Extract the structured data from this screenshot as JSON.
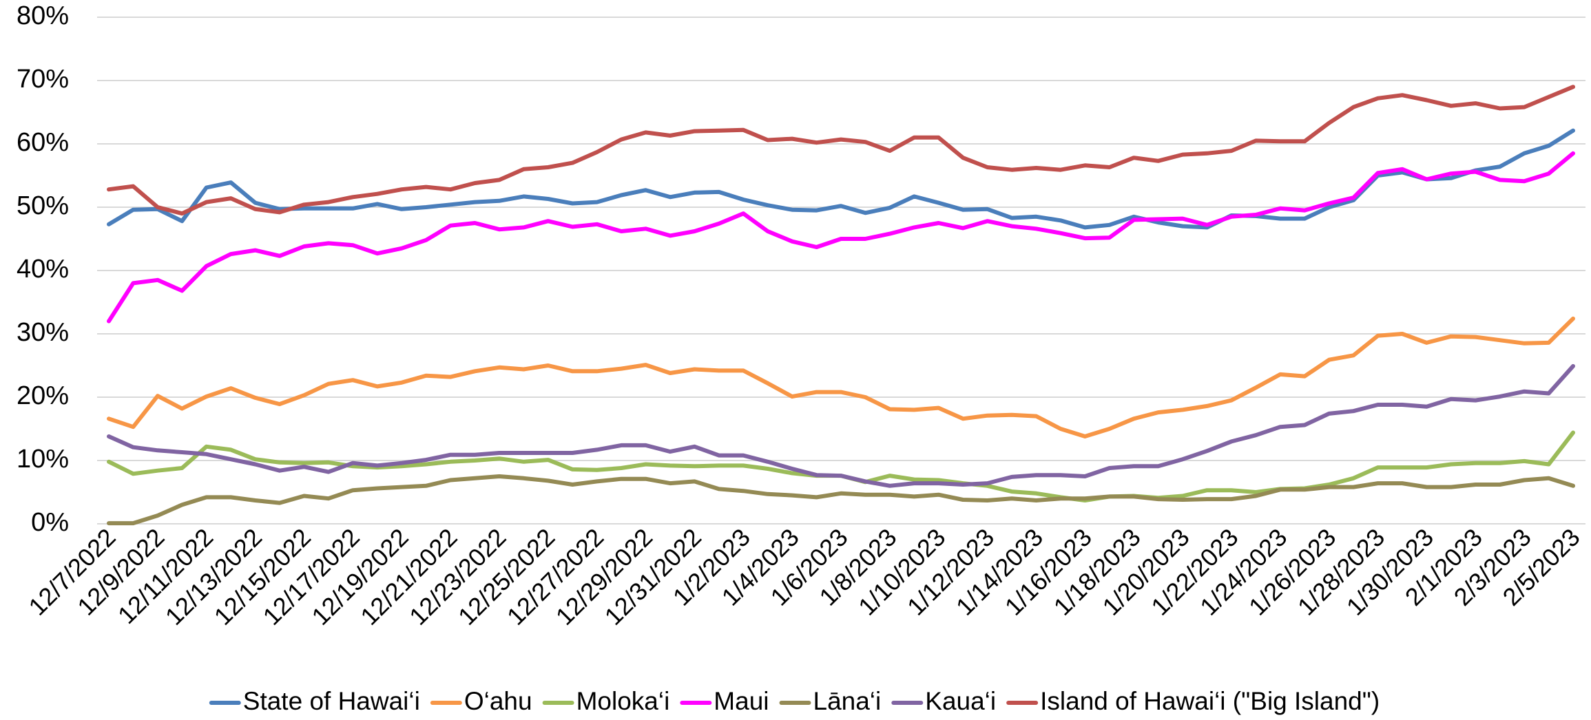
{
  "chart_data": {
    "type": "line",
    "categories": [
      "12/7/2022",
      null,
      "12/9/2022",
      null,
      "12/11/2022",
      null,
      "12/13/2022",
      null,
      "12/15/2022",
      null,
      "12/17/2022",
      null,
      "12/19/2022",
      null,
      "12/21/2022",
      null,
      "12/23/2022",
      null,
      "12/25/2022",
      null,
      "12/27/2022",
      null,
      "12/29/2022",
      null,
      "12/31/2022",
      null,
      "1/2/2023",
      null,
      "1/4/2023",
      null,
      "1/6/2023",
      null,
      "1/8/2023",
      null,
      "1/10/2023",
      null,
      "1/12/2023",
      null,
      "1/14/2023",
      null,
      "1/16/2023",
      null,
      "1/18/2023",
      null,
      "1/20/2023",
      null,
      "1/22/2023",
      null,
      "1/24/2023",
      null,
      "1/26/2023",
      null,
      "1/28/2023",
      null,
      "1/30/2023",
      null,
      "2/1/2023",
      null,
      "2/3/2023",
      null,
      "2/5/2023"
    ],
    "ylim": [
      0,
      80
    ],
    "yticks": [
      {
        "value": 0,
        "label": "0%"
      },
      {
        "value": 10,
        "label": "10%"
      },
      {
        "value": 20,
        "label": "20%"
      },
      {
        "value": 30,
        "label": "30%"
      },
      {
        "value": 40,
        "label": "40%"
      },
      {
        "value": 50,
        "label": "50%"
      },
      {
        "value": 60,
        "label": "60%"
      },
      {
        "value": 70,
        "label": "70%"
      },
      {
        "value": 80,
        "label": "80%"
      }
    ],
    "grid": true,
    "legend": "bottom",
    "series": [
      {
        "name": "State of Hawai‘i",
        "color": "#4a7ebb",
        "values": [
          47.3,
          49.6,
          49.7,
          47.8,
          53.1,
          53.9,
          50.7,
          49.7,
          49.8,
          49.8,
          49.8,
          50.5,
          49.7,
          50.0,
          50.4,
          50.8,
          51.0,
          51.7,
          51.3,
          50.6,
          50.8,
          51.9,
          52.7,
          51.6,
          52.3,
          52.4,
          51.2,
          50.3,
          49.6,
          49.5,
          50.2,
          49.1,
          49.9,
          51.7,
          50.7,
          49.6,
          49.7,
          48.3,
          48.5,
          47.9,
          46.8,
          47.2,
          48.5,
          47.6,
          47.0,
          46.8,
          48.7,
          48.6,
          48.2,
          48.2,
          50.0,
          51.1,
          55.0,
          55.5,
          54.4,
          54.6,
          55.8,
          56.4,
          58.5,
          59.7,
          62.1
        ]
      },
      {
        "name": "O‘ahu",
        "color": "#f79646",
        "values": [
          16.6,
          15.3,
          20.2,
          18.2,
          20.1,
          21.4,
          19.9,
          18.9,
          20.3,
          22.1,
          22.7,
          21.7,
          22.3,
          23.4,
          23.2,
          24.1,
          24.7,
          24.4,
          25.0,
          24.1,
          24.1,
          24.5,
          25.1,
          23.8,
          24.4,
          24.2,
          24.2,
          22.2,
          20.1,
          20.8,
          20.8,
          20.0,
          18.1,
          18.0,
          18.3,
          16.6,
          17.1,
          17.2,
          17.0,
          15.0,
          13.8,
          15.0,
          16.6,
          17.6,
          18.0,
          18.6,
          19.5,
          21.5,
          23.6,
          23.3,
          25.9,
          26.6,
          29.7,
          30.0,
          28.6,
          29.6,
          29.5,
          29.0,
          28.5,
          28.6,
          32.4
        ]
      },
      {
        "name": "Moloka‘i",
        "color": "#9bbb59",
        "values": [
          9.8,
          7.9,
          8.4,
          8.8,
          12.2,
          11.7,
          10.2,
          9.7,
          9.6,
          9.7,
          9.1,
          8.9,
          9.1,
          9.4,
          9.8,
          10.0,
          10.3,
          9.8,
          10.1,
          8.6,
          8.5,
          8.8,
          9.4,
          9.2,
          9.1,
          9.2,
          9.2,
          8.7,
          8.0,
          7.6,
          7.6,
          6.6,
          7.6,
          7.0,
          6.9,
          6.4,
          6.0,
          5.1,
          4.8,
          4.2,
          3.7,
          4.3,
          4.4,
          4.1,
          4.4,
          5.3,
          5.3,
          5.0,
          5.5,
          5.6,
          6.2,
          7.2,
          8.9,
          8.9,
          8.9,
          9.4,
          9.6,
          9.6,
          9.9,
          9.4,
          14.4
        ]
      },
      {
        "name": "Maui",
        "color": "#ff00ff",
        "values": [
          32.0,
          38.0,
          38.5,
          36.8,
          40.7,
          42.6,
          43.2,
          42.3,
          43.8,
          44.3,
          44.0,
          42.7,
          43.5,
          44.8,
          47.1,
          47.5,
          46.5,
          46.8,
          47.8,
          46.9,
          47.3,
          46.2,
          46.6,
          45.5,
          46.2,
          47.4,
          49.0,
          46.2,
          44.6,
          43.7,
          45.0,
          45.0,
          45.8,
          46.8,
          47.5,
          46.7,
          47.8,
          47.0,
          46.6,
          45.9,
          45.1,
          45.2,
          48.0,
          48.1,
          48.2,
          47.2,
          48.5,
          48.8,
          49.8,
          49.5,
          50.6,
          51.5,
          55.4,
          56.0,
          54.4,
          55.3,
          55.6,
          54.3,
          54.1,
          55.3,
          58.5
        ]
      },
      {
        "name": "Lāna‘i",
        "color": "#948a54",
        "values": [
          0.1,
          0.1,
          1.3,
          3.0,
          4.2,
          4.2,
          3.7,
          3.3,
          4.4,
          4.0,
          5.3,
          5.6,
          5.8,
          6.0,
          6.9,
          7.2,
          7.5,
          7.2,
          6.8,
          6.2,
          6.7,
          7.1,
          7.1,
          6.4,
          6.7,
          5.5,
          5.2,
          4.7,
          4.5,
          4.2,
          4.8,
          4.6,
          4.6,
          4.3,
          4.6,
          3.8,
          3.7,
          4.0,
          3.7,
          4.0,
          4.0,
          4.3,
          4.3,
          3.9,
          3.8,
          3.9,
          3.9,
          4.4,
          5.4,
          5.4,
          5.8,
          5.8,
          6.4,
          6.4,
          5.8,
          5.8,
          6.2,
          6.2,
          6.9,
          7.2,
          6.0
        ]
      },
      {
        "name": "Kaua‘i",
        "color": "#8064a2",
        "values": [
          13.8,
          12.1,
          11.6,
          11.3,
          11.0,
          10.2,
          9.4,
          8.4,
          9.0,
          8.2,
          9.6,
          9.2,
          9.6,
          10.1,
          10.9,
          10.9,
          11.2,
          11.2,
          11.2,
          11.2,
          11.7,
          12.4,
          12.4,
          11.4,
          12.2,
          10.8,
          10.8,
          9.8,
          8.7,
          7.7,
          7.6,
          6.7,
          6.0,
          6.4,
          6.4,
          6.2,
          6.4,
          7.4,
          7.7,
          7.7,
          7.5,
          8.8,
          9.1,
          9.1,
          10.2,
          11.5,
          13.0,
          14.0,
          15.3,
          15.6,
          17.4,
          17.8,
          18.8,
          18.8,
          18.5,
          19.7,
          19.5,
          20.1,
          20.9,
          20.6,
          24.9
        ]
      },
      {
        "name": "Island of Hawai‘i (\"Big Island\")",
        "color": "#c0504d",
        "values": [
          52.8,
          53.3,
          50.0,
          49.0,
          50.8,
          51.4,
          49.7,
          49.2,
          50.4,
          50.8,
          51.6,
          52.1,
          52.8,
          53.2,
          52.8,
          53.8,
          54.3,
          56.0,
          56.3,
          57.0,
          58.7,
          60.7,
          61.8,
          61.3,
          62.0,
          62.1,
          62.2,
          60.6,
          60.8,
          60.2,
          60.7,
          60.3,
          58.9,
          61.0,
          61.0,
          57.8,
          56.3,
          55.9,
          56.2,
          55.9,
          56.6,
          56.3,
          57.8,
          57.3,
          58.3,
          58.5,
          58.9,
          60.5,
          60.4,
          60.4,
          63.3,
          65.8,
          67.2,
          67.7,
          66.9,
          66.0,
          66.4,
          65.6,
          65.8,
          67.4,
          69.0
        ]
      }
    ]
  }
}
